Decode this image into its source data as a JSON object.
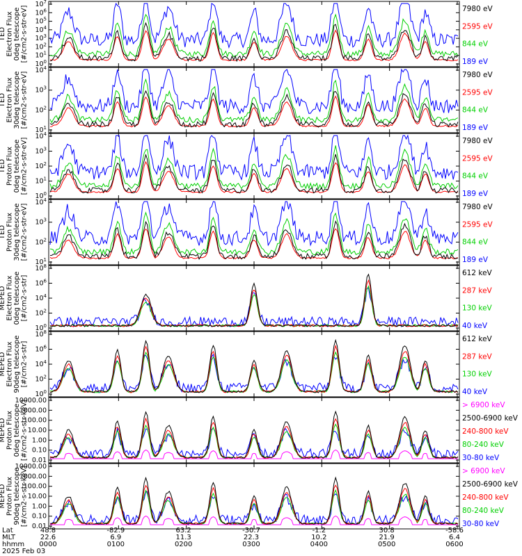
{
  "figure": {
    "date_label": "2025 Feb 03"
  },
  "colors": {
    "black": "#000000",
    "red": "#ff0000",
    "green": "#00d000",
    "blue": "#0000ff",
    "magenta": "#ff00ff"
  },
  "footer": {
    "row_labels": [
      "Lat",
      "MLT",
      "hhmm"
    ],
    "lat": [
      "48.8",
      "-82.9",
      "63.2",
      "-30.7",
      "-1.2",
      "30.8",
      "-58.6"
    ],
    "mlt": [
      "22.6",
      "6.9",
      "11.3",
      "22.3",
      "10.2",
      "21.9",
      "6.4"
    ],
    "hhmm": [
      "0000",
      "0100",
      "0200",
      "0300",
      "0400",
      "0500",
      "0600"
    ]
  },
  "chart_data": [
    {
      "type": "line",
      "panel": "ted-electron-0",
      "ylabel": [
        "TED",
        "Electron Flux",
        "0deg telescope",
        "[#/cm2-s-str-eV]"
      ],
      "ticks": [
        "10^7",
        "10^6",
        "10^5",
        "10^4",
        "10^3",
        "10^2",
        "10^1",
        "10^0"
      ],
      "ylim": [
        1,
        10000000
      ],
      "log": true,
      "series": [
        {
          "name": "7980 eV",
          "color": "#000000"
        },
        {
          "name": "2595 eV",
          "color": "#ff0000"
        },
        {
          "name": "844 eV",
          "color": "#00d000"
        },
        {
          "name": "189 eV",
          "color": "#0000ff"
        }
      ]
    },
    {
      "type": "line",
      "panel": "ted-electron-30",
      "ylabel": [
        "TED",
        "Electron Flux",
        "30deg telescope",
        "[#/cm2-s-str-eV]"
      ],
      "ticks": [
        "10^4",
        "10^3",
        "10^2",
        "10^1"
      ],
      "ylim": [
        1,
        100000
      ],
      "log": true,
      "series": [
        {
          "name": "7980 eV",
          "color": "#000000"
        },
        {
          "name": "2595 eV",
          "color": "#ff0000"
        },
        {
          "name": "844 eV",
          "color": "#00d000"
        },
        {
          "name": "189 eV",
          "color": "#0000ff"
        }
      ]
    },
    {
      "type": "line",
      "panel": "ted-proton-0",
      "ylabel": [
        "TED",
        "Proton Flux",
        "0deg telescope",
        "[#/cm2-s-str-eV]"
      ],
      "ticks": [
        "10^4",
        "10^3",
        "10^2",
        "10^1",
        "10^0"
      ],
      "ylim": [
        0.3,
        30000
      ],
      "log": true,
      "series": [
        {
          "name": "7980 eV",
          "color": "#000000"
        },
        {
          "name": "2595 eV",
          "color": "#ff0000"
        },
        {
          "name": "844 eV",
          "color": "#00d000"
        },
        {
          "name": "189 eV",
          "color": "#0000ff"
        }
      ]
    },
    {
      "type": "line",
      "panel": "ted-proton-30",
      "ylabel": [
        "TED",
        "Proton Flux",
        "30deg telescope",
        "[#/cm2-s-str-eV]"
      ],
      "ticks": [
        "10^4",
        "10^3",
        "10^2",
        "10^1"
      ],
      "ylim": [
        1,
        50000
      ],
      "log": true,
      "series": [
        {
          "name": "7980 eV",
          "color": "#000000"
        },
        {
          "name": "2595 eV",
          "color": "#ff0000"
        },
        {
          "name": "844 eV",
          "color": "#00d000"
        },
        {
          "name": "189 eV",
          "color": "#0000ff"
        }
      ]
    },
    {
      "type": "line",
      "panel": "meped-electron-0",
      "ylabel": [
        "MEPED",
        "Electron Flux",
        "0deg telescope",
        "[#/cm2-s-str]"
      ],
      "ticks": [
        "10^8",
        "10^6",
        "10^4",
        "10^2",
        "10^0"
      ],
      "ylim": [
        1,
        100000000
      ],
      "log": true,
      "series": [
        {
          "name": "612 keV",
          "color": "#000000"
        },
        {
          "name": "287 keV",
          "color": "#ff0000"
        },
        {
          "name": "130 keV",
          "color": "#00d000"
        },
        {
          "name": "40 keV",
          "color": "#0000ff"
        }
      ]
    },
    {
      "type": "line",
      "panel": "meped-electron-90",
      "ylabel": [
        "MEPED",
        "Electron Flux",
        "90deg telescope",
        "[#/cm2-s-str]"
      ],
      "ticks": [
        "10^8",
        "10^6",
        "10^4",
        "10^2",
        "10^0"
      ],
      "ylim": [
        1,
        100000000
      ],
      "log": true,
      "series": [
        {
          "name": "612 keV",
          "color": "#000000"
        },
        {
          "name": "287 keV",
          "color": "#ff0000"
        },
        {
          "name": "130 keV",
          "color": "#00d000"
        },
        {
          "name": "40 keV",
          "color": "#0000ff"
        }
      ]
    },
    {
      "type": "line",
      "panel": "meped-proton-0",
      "ylabel": [
        "MEPED",
        "Proton Flux",
        "0deg telescope",
        "[#/cm2-s-str-keV]"
      ],
      "ticks": [
        "10000.00",
        "1000.00",
        "100.00",
        "10.00",
        "1.00",
        "0.10",
        "0.01"
      ],
      "ylim": [
        0.01,
        10000
      ],
      "log": true,
      "series": [
        {
          "name": "> 6900 keV",
          "color": "#ff00ff"
        },
        {
          "name": "2500-6900 keV",
          "color": "#000000"
        },
        {
          "name": "240-800 keV",
          "color": "#ff0000"
        },
        {
          "name": "80-240 keV",
          "color": "#00d000"
        },
        {
          "name": "30-80 keV",
          "color": "#0000ff"
        }
      ]
    },
    {
      "type": "line",
      "panel": "meped-proton-90",
      "ylabel": [
        "MEPED",
        "Proton Flux",
        "90deg telescope",
        "[#/cm2-s-str-keV]"
      ],
      "ticks": [
        "10000.00",
        "1000.00",
        "100.00",
        "10.00",
        "1.00",
        "0.10",
        "0.01"
      ],
      "ylim": [
        0.01,
        10000
      ],
      "log": true,
      "series": [
        {
          "name": "> 6900 keV",
          "color": "#ff00ff"
        },
        {
          "name": "2500-6900 keV",
          "color": "#000000"
        },
        {
          "name": "240-800 keV",
          "color": "#ff0000"
        },
        {
          "name": "80-240 keV",
          "color": "#00d000"
        },
        {
          "name": "30-80 keV",
          "color": "#0000ff"
        }
      ]
    }
  ]
}
